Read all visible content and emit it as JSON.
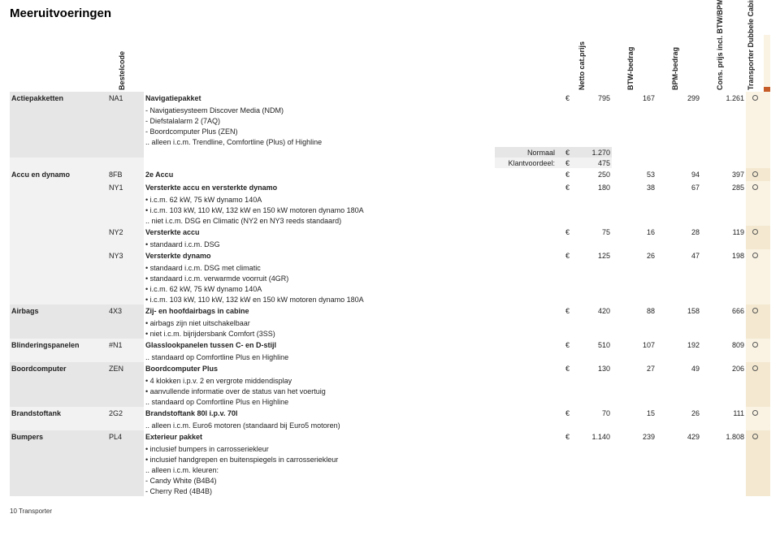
{
  "page": {
    "title": "Meeruitvoeringen",
    "footer": "10  Transporter"
  },
  "headers": {
    "bestelcode": "Bestelcode",
    "netto": "Netto cat.prijs",
    "btw": "BTW-bedrag",
    "bpm": "BPM-bedrag",
    "cons": "Cons. prijs incl.\nBTW/BPM",
    "trans": "Transporter\nDubbele Cabine"
  },
  "labels": {
    "normaal": "Normaal",
    "klantvoordeel": "Klantvoordeel:",
    "euro": "€"
  },
  "sections": [
    {
      "category": "Actiepakketten",
      "code": "NA1",
      "title": "Navigatiepakket",
      "price": "795",
      "btw": "167",
      "bpm": "299",
      "cons": "1.261",
      "marker": true,
      "lines": [
        "- Navigatiesysteem Discover Media (NDM)",
        "- Diefstalalarm 2 (7AQ)",
        "- Boordcomputer Plus (ZEN)",
        ".. alleen i.c.m. Trendline, Comfortline (Plus) of Highline"
      ],
      "extra": {
        "normaal": "1.270",
        "klantvoordeel": "475"
      }
    },
    {
      "category": "Accu en dynamo",
      "rows": [
        {
          "code": "8FB",
          "title": "2e Accu",
          "price": "250",
          "btw": "53",
          "bpm": "94",
          "cons": "397",
          "marker": true
        },
        {
          "code": "NY1",
          "title": "Versterkte accu en versterkte dynamo",
          "price": "180",
          "btw": "38",
          "bpm": "67",
          "cons": "285",
          "marker": true,
          "lines": [
            "• i.c.m. 62 kW, 75 kW dynamo 140A",
            "• i.c.m. 103 kW, 110 kW, 132 kW en 150 kW motoren dynamo 180A",
            ".. niet i.c.m. DSG en Climatic (NY2 en NY3 reeds standaard)"
          ]
        },
        {
          "code": "NY2",
          "title": "Versterkte accu",
          "price": "75",
          "btw": "16",
          "bpm": "28",
          "cons": "119",
          "marker": true,
          "lines": [
            "• standaard i.c.m. DSG"
          ]
        },
        {
          "code": "NY3",
          "title": "Versterkte dynamo",
          "price": "125",
          "btw": "26",
          "bpm": "47",
          "cons": "198",
          "marker": true,
          "lines": [
            "• standaard i.c.m. DSG met climatic",
            "• standaard i.c.m. verwarmde voorruit (4GR)",
            "• i.c.m. 62 kW, 75 kW dynamo 140A",
            "• i.c.m. 103 kW, 110 kW, 132 kW en 150 kW motoren dynamo 180A"
          ]
        }
      ]
    },
    {
      "category": "Airbags",
      "code": "4X3",
      "title": "Zij- en hoofdairbags in cabine",
      "price": "420",
      "btw": "88",
      "bpm": "158",
      "cons": "666",
      "marker": true,
      "lines": [
        "• airbags zijn niet uitschakelbaar",
        "• niet i.c.m. bijrijdersbank Comfort (3SS)"
      ]
    },
    {
      "category": "Blinderingspanelen",
      "code": "#N1",
      "title": "Glasslookpanelen tussen C- en D-stijl",
      "price": "510",
      "btw": "107",
      "bpm": "192",
      "cons": "809",
      "marker": true,
      "lines": [
        ".. standaard op Comfortline Plus en Highline"
      ]
    },
    {
      "category": "Boordcomputer",
      "code": "ZEN",
      "title": "Boordcomputer Plus",
      "price": "130",
      "btw": "27",
      "bpm": "49",
      "cons": "206",
      "marker": true,
      "lines": [
        "• 4 klokken i.p.v. 2 en vergrote middendisplay",
        "• aanvullende informatie over de status van het voertuig",
        ".. standaard op Comfortline Plus en Highline"
      ]
    },
    {
      "category": "Brandstoftank",
      "code": "2G2",
      "title": "Brandstoftank 80l i.p.v. 70l",
      "price": "70",
      "btw": "15",
      "bpm": "26",
      "cons": "111",
      "marker": true,
      "lines": [
        ".. alleen i.c.m. Euro6 motoren (standaard bij Euro5 motoren)"
      ]
    },
    {
      "category": "Bumpers",
      "code": "PL4",
      "title": "Exterieur pakket",
      "price": "1.140",
      "btw": "239",
      "bpm": "429",
      "cons": "1.808",
      "marker": true,
      "lines": [
        "• inclusief bumpers in carrosseriekleur",
        "• inclusief handgrepen en buitenspiegels in carrosseriekleur",
        ".. alleen i.c.m. kleuren:",
        "- Candy White (B4B4)",
        "- Cherry Red (4B4B)"
      ]
    }
  ]
}
